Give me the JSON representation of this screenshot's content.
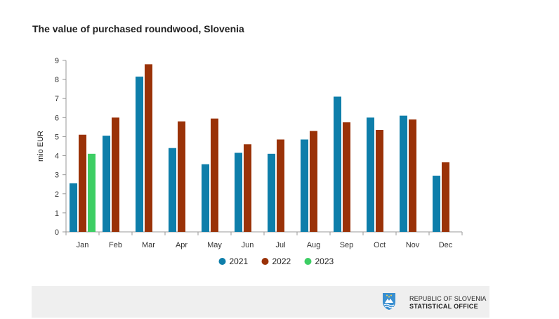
{
  "chart_data": {
    "type": "bar",
    "title": "The value of purchased roundwood, Slovenia",
    "xlabel": "",
    "ylabel": "mio EUR",
    "ylim": [
      0,
      9
    ],
    "yticks": [
      0,
      1,
      2,
      3,
      4,
      5,
      6,
      7,
      8,
      9
    ],
    "grid": false,
    "legend_position": "bottom-center",
    "categories": [
      "Jan",
      "Feb",
      "Mar",
      "Apr",
      "May",
      "Jun",
      "Jul",
      "Aug",
      "Sep",
      "Oct",
      "Nov",
      "Dec"
    ],
    "series": [
      {
        "name": "2021",
        "color": "#0e7eaa",
        "values": [
          2.55,
          5.05,
          8.15,
          4.4,
          3.55,
          4.15,
          4.1,
          4.85,
          7.1,
          6.0,
          6.1,
          2.95
        ]
      },
      {
        "name": "2022",
        "color": "#9a3208",
        "values": [
          5.1,
          6.0,
          8.8,
          5.8,
          5.95,
          4.6,
          4.85,
          5.3,
          5.75,
          5.35,
          5.9,
          3.65
        ]
      },
      {
        "name": "2023",
        "color": "#3dce64",
        "values": [
          4.1,
          null,
          null,
          null,
          null,
          null,
          null,
          null,
          null,
          null,
          null,
          null
        ]
      }
    ]
  },
  "footer": {
    "line1": "REPUBLIC OF SLOVENIA",
    "line2": "STATISTICAL OFFICE"
  },
  "colors": {
    "logo_blue": "#3a8fd0"
  }
}
